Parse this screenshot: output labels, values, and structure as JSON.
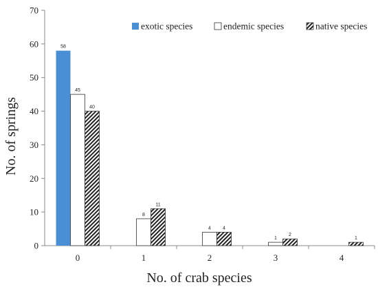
{
  "chart_data": {
    "type": "bar",
    "categories": [
      "0",
      "1",
      "2",
      "3",
      "4"
    ],
    "series": [
      {
        "name": "exotic species",
        "values": [
          58,
          0,
          0,
          0,
          0
        ],
        "labels": [
          "58",
          "",
          "",
          "",
          ""
        ],
        "style": "solid",
        "color": "#4a8fd6"
      },
      {
        "name": "endemic species",
        "values": [
          45,
          8,
          4,
          1,
          0
        ],
        "labels": [
          "45",
          "8",
          "4",
          "1",
          ""
        ],
        "style": "outline",
        "color": "#ffffff"
      },
      {
        "name": "native species",
        "values": [
          40,
          11,
          4,
          2,
          1
        ],
        "labels": [
          "40",
          "11",
          "4",
          "2",
          "1"
        ],
        "style": "hatch",
        "color": "#222222"
      }
    ],
    "xlabel": "No. of crab species",
    "ylabel": "No. of springs",
    "ylim": [
      0,
      70
    ],
    "yticks": [
      "0",
      "10",
      "20",
      "30",
      "40",
      "50",
      "60",
      "70"
    ],
    "grid": false,
    "legend": "top-right"
  }
}
